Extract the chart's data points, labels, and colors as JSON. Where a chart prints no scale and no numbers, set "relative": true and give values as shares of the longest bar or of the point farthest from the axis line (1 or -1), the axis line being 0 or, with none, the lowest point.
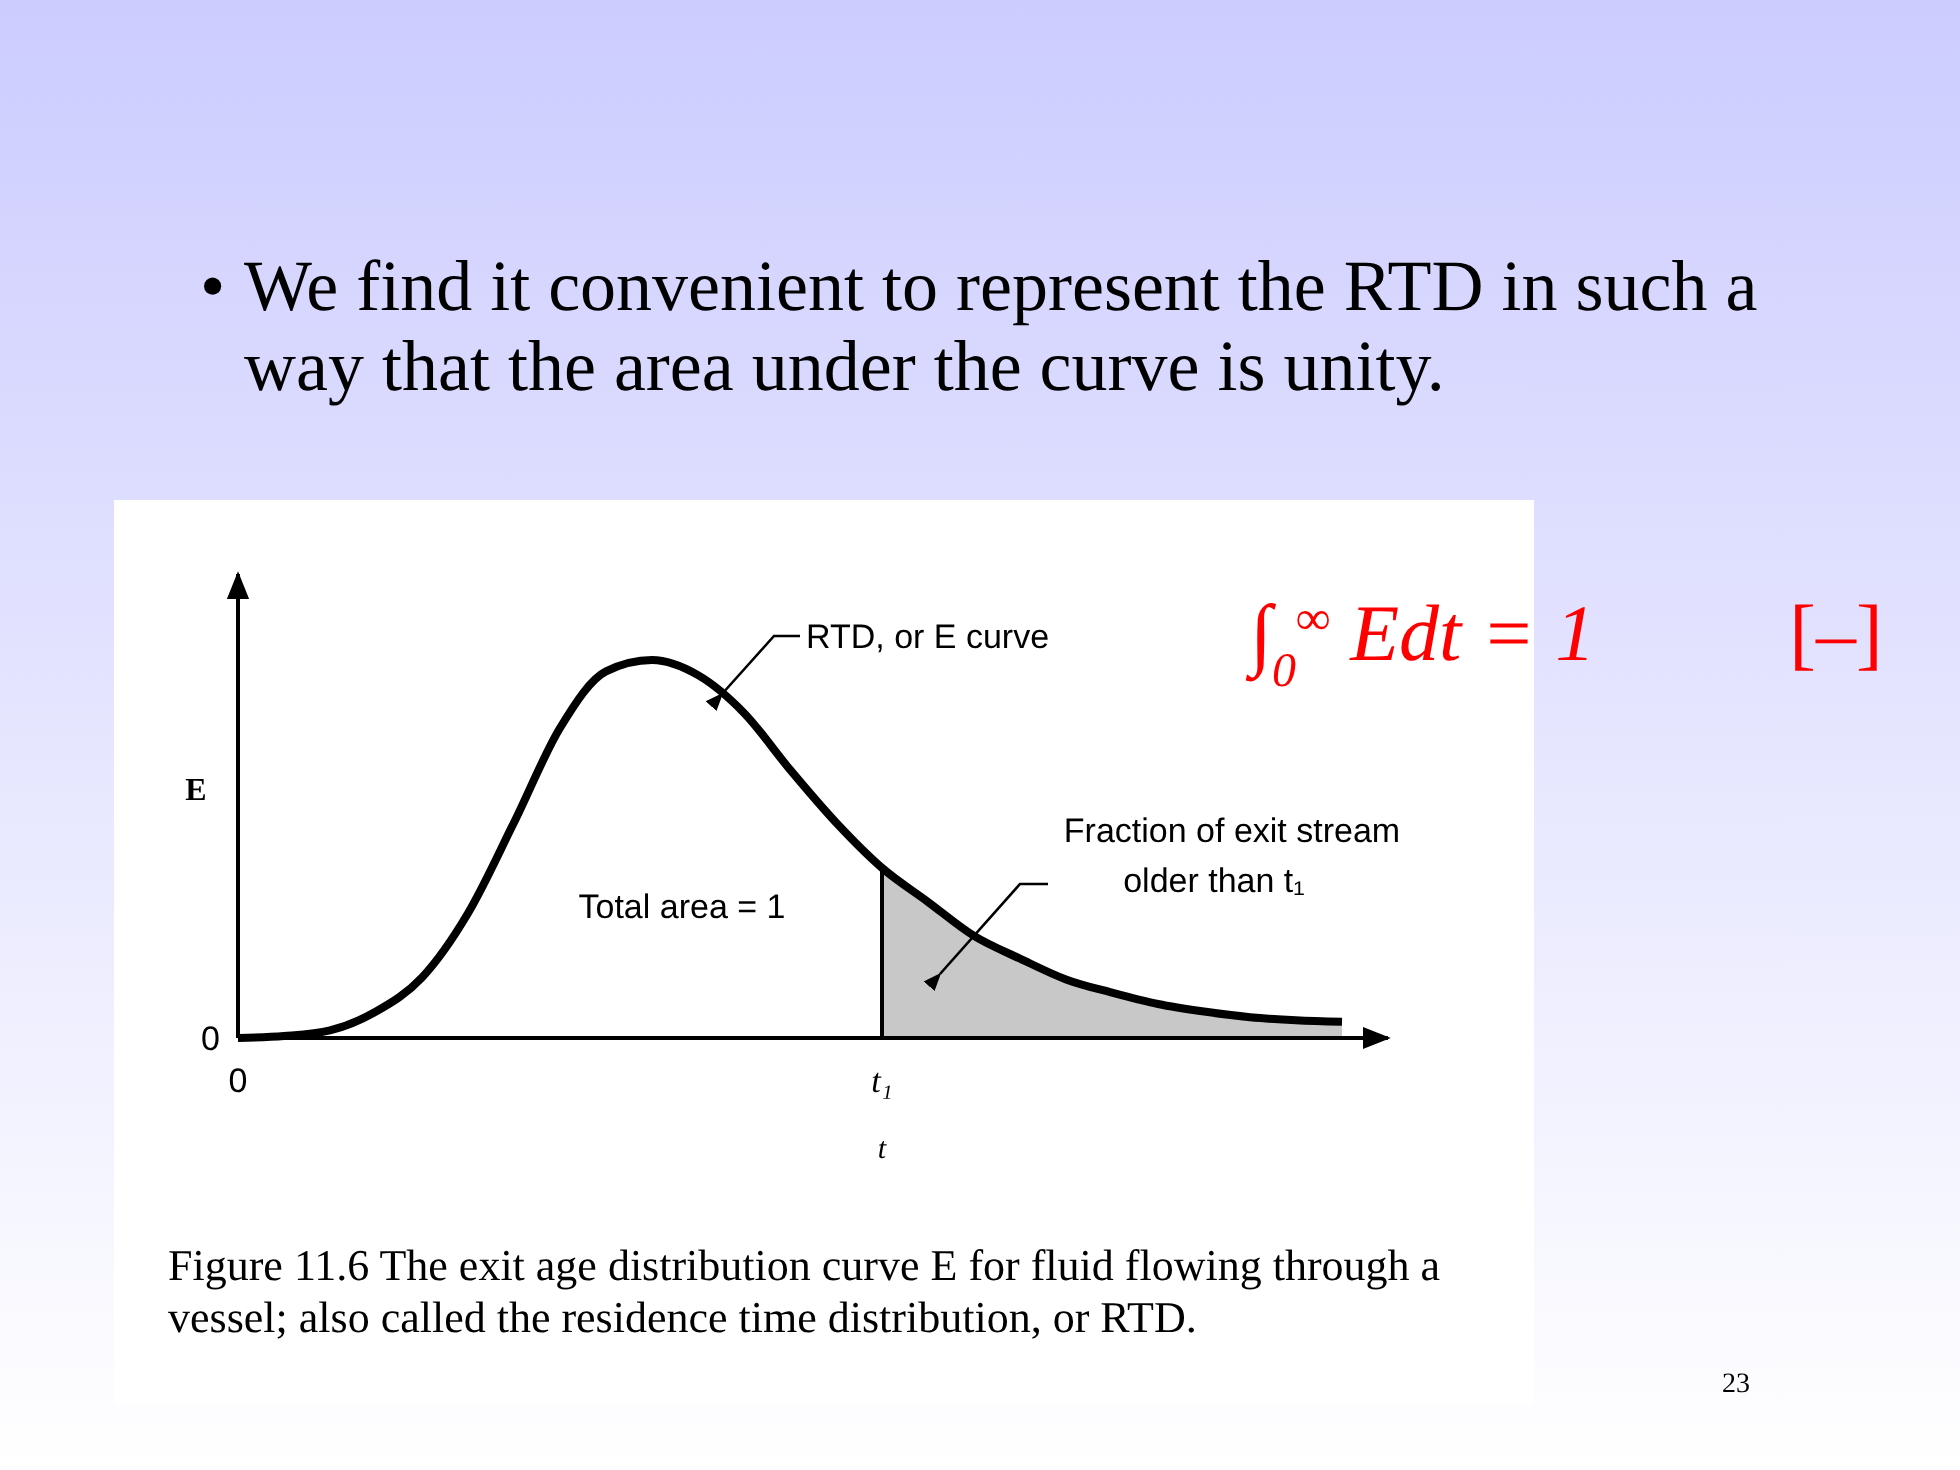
{
  "chart_data": {
    "type": "line",
    "relative": true,
    "title": "We find it convenient to represent the RTD in such a way that the area under the curve is unity.",
    "xlabel": "t",
    "ylabel": "E",
    "categories": [
      null,
      null,
      null,
      null,
      null,
      null,
      null,
      null,
      null,
      null,
      null,
      null,
      null,
      null,
      null,
      null,
      null,
      null,
      null,
      null,
      null,
      null,
      null,
      null,
      null
    ],
    "series": [
      {
        "type": "area",
        "color": "#c8c8c8",
        "values": [
          null,
          null,
          null,
          null,
          null,
          null,
          null,
          null,
          null,
          null,
          null,
          null,
          null,
          null,
          0.45,
          0.36,
          0.27,
          0.21,
          0.155,
          0.12,
          0.09,
          0.07,
          0.055,
          0.047,
          0.043
        ]
      },
      {
        "color": "#000000",
        "values": [
          0,
          0.005,
          0.02,
          0.07,
          0.16,
          0.33,
          0.57,
          0.82,
          0.97,
          1,
          0.96,
          0.86,
          0.71,
          0.57,
          0.45,
          0.36,
          0.27,
          0.21,
          0.155,
          0.12,
          0.09,
          0.07,
          0.055,
          0.047,
          0.043
        ]
      }
    ],
    "marker": "none",
    "line_style": "solid",
    "annotations": [
      "RTD, or E curve",
      "Total area = 1",
      "Fraction of exit stream older than t₁",
      "0",
      "∫$_{0}$$^{∞}$ Edt = 1",
      "[–]",
      "Figure 11.6 The exit age distribution curve E for fluid flowing through a vessel; also called the residence time distribution, or RTD.",
      "23",
      "0",
      "t₁",
      "•"
    ]
  }
}
